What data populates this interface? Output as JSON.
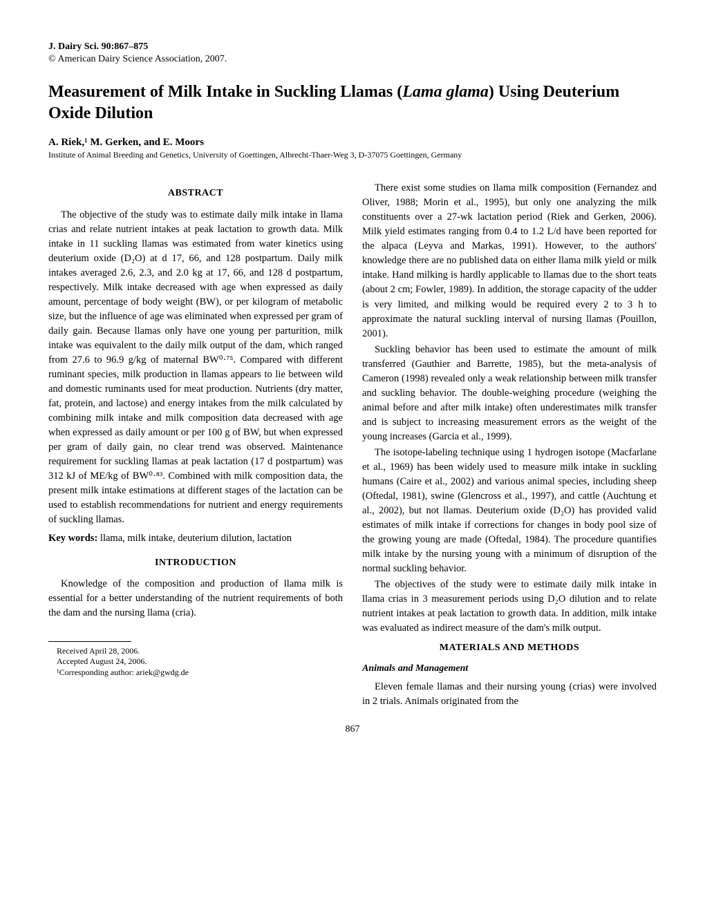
{
  "journal": {
    "citation": "J. Dairy Sci. 90:867–875",
    "copyright": "© American Dairy Science Association, 2007."
  },
  "title": {
    "main": "Measurement of Milk Intake in Suckling Llamas (",
    "italic": "Lama glama",
    "tail": ") Using Deuterium Oxide Dilution"
  },
  "authors": "A. Riek,¹ M. Gerken, and E. Moors",
  "affiliation": "Institute of Animal Breeding and Genetics, University of Goettingen, Albrecht-Thaer-Weg 3, D-37075 Goettingen, Germany",
  "headings": {
    "abstract": "ABSTRACT",
    "introduction": "INTRODUCTION",
    "materials": "MATERIALS AND METHODS",
    "animals": "Animals and Management"
  },
  "abstract": {
    "p1": "The objective of the study was to estimate daily milk intake in llama crias and relate nutrient intakes at peak lactation to growth data. Milk intake in 11 suckling llamas was estimated from water kinetics using deuterium oxide (D₂O) at d 17, 66, and 128 postpartum. Daily milk intakes averaged 2.6, 2.3, and 2.0 kg at 17, 66, and 128 d postpartum, respectively. Milk intake decreased with age when expressed as daily amount, percentage of body weight (BW), or per kilogram of metabolic size, but the influence of age was eliminated when expressed per gram of daily gain. Because llamas only have one young per parturition, milk intake was equivalent to the daily milk output of the dam, which ranged from 27.6 to 96.9 g/kg of maternal BW⁰·⁷⁵. Compared with different ruminant species, milk production in llamas appears to lie between wild and domestic ruminants used for meat production. Nutrients (dry matter, fat, protein, and lactose) and energy intakes from the milk calculated by combining milk intake and milk composition data decreased with age when expressed as daily amount or per 100 g of BW, but when expressed per gram of daily gain, no clear trend was observed. Maintenance requirement for suckling llamas at peak lactation (17 d postpartum) was 312 kJ of ME/kg of BW⁰·⁸³. Combined with milk composition data, the present milk intake estimations at different stages of the lactation can be used to establish recommendations for nutrient and energy requirements of suckling llamas."
  },
  "keywords": {
    "label": "Key words:",
    "text": " llama, milk intake, deuterium dilution, lactation"
  },
  "introduction": {
    "p1": "Knowledge of the composition and production of llama milk is essential for a better understanding of the nutrient requirements of both the dam and the nursing llama (cria)."
  },
  "col2": {
    "p1": "There exist some studies on llama milk composition (Fernandez and Oliver, 1988; Morin et al., 1995), but only one analyzing the milk constituents over a 27-wk lactation period (Riek and Gerken, 2006). Milk yield estimates ranging from 0.4 to 1.2 L/d have been reported for the alpaca (Leyva and Markas, 1991). However, to the authors' knowledge there are no published data on either llama milk yield or milk intake. Hand milking is hardly applicable to llamas due to the short teats (about 2 cm; Fowler, 1989). In addition, the storage capacity of the udder is very limited, and milking would be required every 2 to 3 h to approximate the natural suckling interval of nursing llamas (Pouillon, 2001).",
    "p2": "Suckling behavior has been used to estimate the amount of milk transferred (Gauthier and Barrette, 1985), but the meta-analysis of Cameron (1998) revealed only a weak relationship between milk transfer and suckling behavior. The double-weighing procedure (weighing the animal before and after milk intake) often underestimates milk transfer and is subject to increasing measurement errors as the weight of the young increases (Garcia et al., 1999).",
    "p3": "The isotope-labeling technique using 1 hydrogen isotope (Macfarlane et al., 1969) has been widely used to measure milk intake in suckling humans (Caire et al., 2002) and various animal species, including sheep (Oftedal, 1981), swine (Glencross et al., 1997), and cattle (Auchtung et al., 2002), but not llamas. Deuterium oxide (D₂O) has provided valid estimates of milk intake if corrections for changes in body pool size of the growing young are made (Oftedal, 1984). The procedure quantifies milk intake by the nursing young with a minimum of disruption of the normal suckling behavior.",
    "p4": "The objectives of the study were to estimate daily milk intake in llama crias in 3 measurement periods using D₂O dilution and to relate nutrient intakes at peak lactation to growth data. In addition, milk intake was evaluated as indirect measure of the dam's milk output."
  },
  "materials": {
    "p1": "Eleven female llamas and their nursing young (crias) were involved in 2 trials. Animals originated from the"
  },
  "footnotes": {
    "received": "Received April 28, 2006.",
    "accepted": "Accepted August 24, 2006.",
    "corresponding": "¹Corresponding author: ariek@gwdg.de"
  },
  "pageNumber": "867"
}
